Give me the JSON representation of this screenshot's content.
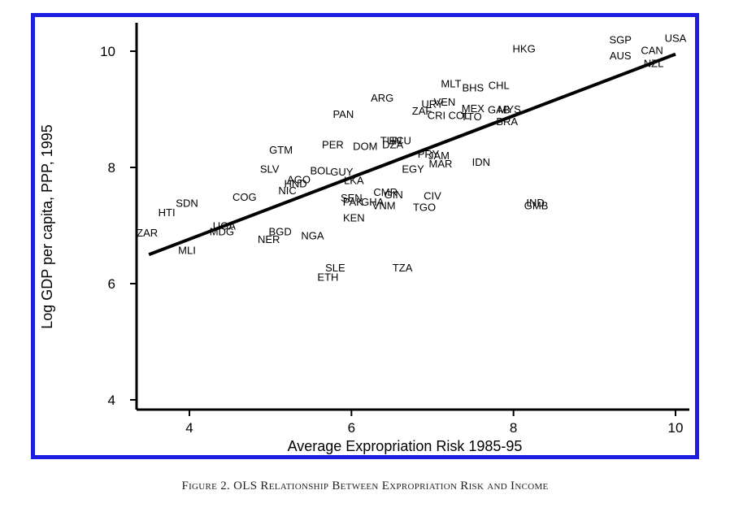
{
  "caption": "Figure 2. OLS Relationship Between Expropriation Risk and Income",
  "chart_data": {
    "type": "scatter",
    "title": "",
    "xlabel": "Average Expropriation Risk 1985-95",
    "ylabel": "Log GDP per capita, PPP, 1995",
    "xlim": [
      3.3,
      10.2
    ],
    "ylim": [
      3.8,
      10.6
    ],
    "xticks": [
      4,
      6,
      8,
      10
    ],
    "yticks": [
      4,
      6,
      8,
      10
    ],
    "grid": false,
    "colors": {
      "frame": "#1d1ee0",
      "axes": "#000000",
      "fit_line": "#000000",
      "text": "#000000"
    },
    "fit_line": {
      "x": [
        3.5,
        10.0
      ],
      "y": [
        6.5,
        9.95
      ]
    },
    "points": [
      {
        "label": "HKG",
        "x": 8.13,
        "y": 10.05
      },
      {
        "label": "SGP",
        "x": 9.32,
        "y": 10.2
      },
      {
        "label": "AUS",
        "x": 9.32,
        "y": 9.93
      },
      {
        "label": "USA",
        "x": 10.0,
        "y": 10.23
      },
      {
        "label": "CAN",
        "x": 9.71,
        "y": 10.02
      },
      {
        "label": "NZL",
        "x": 9.73,
        "y": 9.8
      },
      {
        "label": "MLT",
        "x": 7.23,
        "y": 9.45
      },
      {
        "label": "BHS",
        "x": 7.5,
        "y": 9.38
      },
      {
        "label": "CHL",
        "x": 7.82,
        "y": 9.42
      },
      {
        "label": "ARG",
        "x": 6.38,
        "y": 9.2
      },
      {
        "label": "VEN",
        "x": 7.15,
        "y": 9.13
      },
      {
        "label": "URY",
        "x": 7.0,
        "y": 9.1
      },
      {
        "label": "MEX",
        "x": 7.5,
        "y": 9.02
      },
      {
        "label": "GAB",
        "x": 7.82,
        "y": 9.0
      },
      {
        "label": "MYS",
        "x": 7.95,
        "y": 9.01
      },
      {
        "label": "ZAF",
        "x": 6.87,
        "y": 8.98
      },
      {
        "label": "CRI",
        "x": 7.05,
        "y": 8.9
      },
      {
        "label": "COL",
        "x": 7.33,
        "y": 8.9
      },
      {
        "label": "TTO",
        "x": 7.48,
        "y": 8.88
      },
      {
        "label": "BRA",
        "x": 7.92,
        "y": 8.8
      },
      {
        "label": "PAN",
        "x": 5.9,
        "y": 8.92
      },
      {
        "label": "TUN",
        "x": 6.49,
        "y": 8.47
      },
      {
        "label": "ECU",
        "x": 6.6,
        "y": 8.47
      },
      {
        "label": "DOM",
        "x": 6.17,
        "y": 8.37
      },
      {
        "label": "DZA",
        "x": 6.51,
        "y": 8.4
      },
      {
        "label": "PER",
        "x": 5.77,
        "y": 8.4
      },
      {
        "label": "GTM",
        "x": 5.13,
        "y": 8.31
      },
      {
        "label": "PRY",
        "x": 6.95,
        "y": 8.24
      },
      {
        "label": "JAM",
        "x": 7.08,
        "y": 8.21
      },
      {
        "label": "MAR",
        "x": 7.1,
        "y": 8.07
      },
      {
        "label": "IDN",
        "x": 7.6,
        "y": 8.1
      },
      {
        "label": "EGY",
        "x": 6.76,
        "y": 7.98
      },
      {
        "label": "SLV",
        "x": 4.99,
        "y": 7.98
      },
      {
        "label": "BOL",
        "x": 5.62,
        "y": 7.95
      },
      {
        "label": "GUY",
        "x": 5.88,
        "y": 7.93
      },
      {
        "label": "AGO",
        "x": 5.35,
        "y": 7.8
      },
      {
        "label": "HND",
        "x": 5.31,
        "y": 7.73
      },
      {
        "label": "LKA",
        "x": 6.03,
        "y": 7.78
      },
      {
        "label": "NIC",
        "x": 5.21,
        "y": 7.61
      },
      {
        "label": "COG",
        "x": 4.68,
        "y": 7.5
      },
      {
        "label": "SDN",
        "x": 3.97,
        "y": 7.39
      },
      {
        "label": "HTI",
        "x": 3.72,
        "y": 7.23
      },
      {
        "label": "SEN",
        "x": 6.0,
        "y": 7.48
      },
      {
        "label": "PAK",
        "x": 6.02,
        "y": 7.41
      },
      {
        "label": "GHA",
        "x": 6.26,
        "y": 7.41
      },
      {
        "label": "CMR",
        "x": 6.42,
        "y": 7.58
      },
      {
        "label": "GIN",
        "x": 6.52,
        "y": 7.54
      },
      {
        "label": "VNM",
        "x": 6.4,
        "y": 7.35
      },
      {
        "label": "CIV",
        "x": 7.0,
        "y": 7.52
      },
      {
        "label": "TGO",
        "x": 6.9,
        "y": 7.32
      },
      {
        "label": "IND",
        "x": 8.27,
        "y": 7.4
      },
      {
        "label": "GMB",
        "x": 8.28,
        "y": 7.35
      },
      {
        "label": "KEN",
        "x": 6.03,
        "y": 7.14
      },
      {
        "label": "UGA",
        "x": 4.43,
        "y": 7.0
      },
      {
        "label": "MDG",
        "x": 4.4,
        "y": 6.9
      },
      {
        "label": "BGD",
        "x": 5.12,
        "y": 6.9
      },
      {
        "label": "NGA",
        "x": 5.52,
        "y": 6.83
      },
      {
        "label": "NER",
        "x": 4.98,
        "y": 6.77
      },
      {
        "label": "ZAR",
        "x": 3.48,
        "y": 6.88
      },
      {
        "label": "MLI",
        "x": 3.97,
        "y": 6.58
      },
      {
        "label": "SLE",
        "x": 5.8,
        "y": 6.28
      },
      {
        "label": "ETH",
        "x": 5.71,
        "y": 6.12
      },
      {
        "label": "TZA",
        "x": 6.63,
        "y": 6.28
      }
    ]
  }
}
